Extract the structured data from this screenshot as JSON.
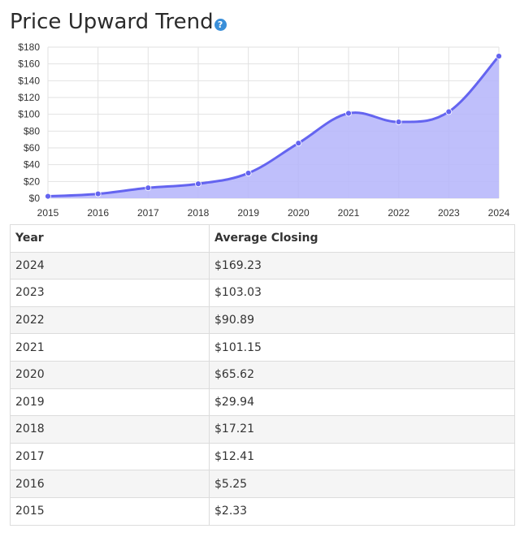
{
  "page": {
    "title": "Price Upward Trend",
    "help_icon": "question-circle-icon"
  },
  "colors": {
    "line": "#6464f0",
    "fill": "#b8b8fb",
    "grid": "#e2e2e2",
    "help": "#3a8fd9"
  },
  "chart_data": {
    "type": "area",
    "x": [
      2015,
      2016,
      2017,
      2018,
      2019,
      2020,
      2021,
      2022,
      2023,
      2024
    ],
    "values": [
      2.33,
      5.25,
      12.41,
      17.21,
      29.94,
      65.62,
      101.15,
      90.89,
      103.03,
      169.23
    ],
    "ylim": [
      0,
      180
    ],
    "yticks": [
      0,
      20,
      40,
      60,
      80,
      100,
      120,
      140,
      160,
      180
    ],
    "ytick_labels": [
      "$0",
      "$20",
      "$40",
      "$60",
      "$80",
      "$100",
      "$120",
      "$140",
      "$160",
      "$180"
    ],
    "xtick_labels": [
      "2015",
      "2016",
      "2017",
      "2018",
      "2019",
      "2020",
      "2021",
      "2022",
      "2023",
      "2024"
    ],
    "grid": true,
    "smooth": true
  },
  "table": {
    "headers": [
      "Year",
      "Average Closing"
    ],
    "rows": [
      [
        "2024",
        "$169.23"
      ],
      [
        "2023",
        "$103.03"
      ],
      [
        "2022",
        "$90.89"
      ],
      [
        "2021",
        "$101.15"
      ],
      [
        "2020",
        "$65.62"
      ],
      [
        "2019",
        "$29.94"
      ],
      [
        "2018",
        "$17.21"
      ],
      [
        "2017",
        "$12.41"
      ],
      [
        "2016",
        "$5.25"
      ],
      [
        "2015",
        "$2.33"
      ]
    ]
  }
}
